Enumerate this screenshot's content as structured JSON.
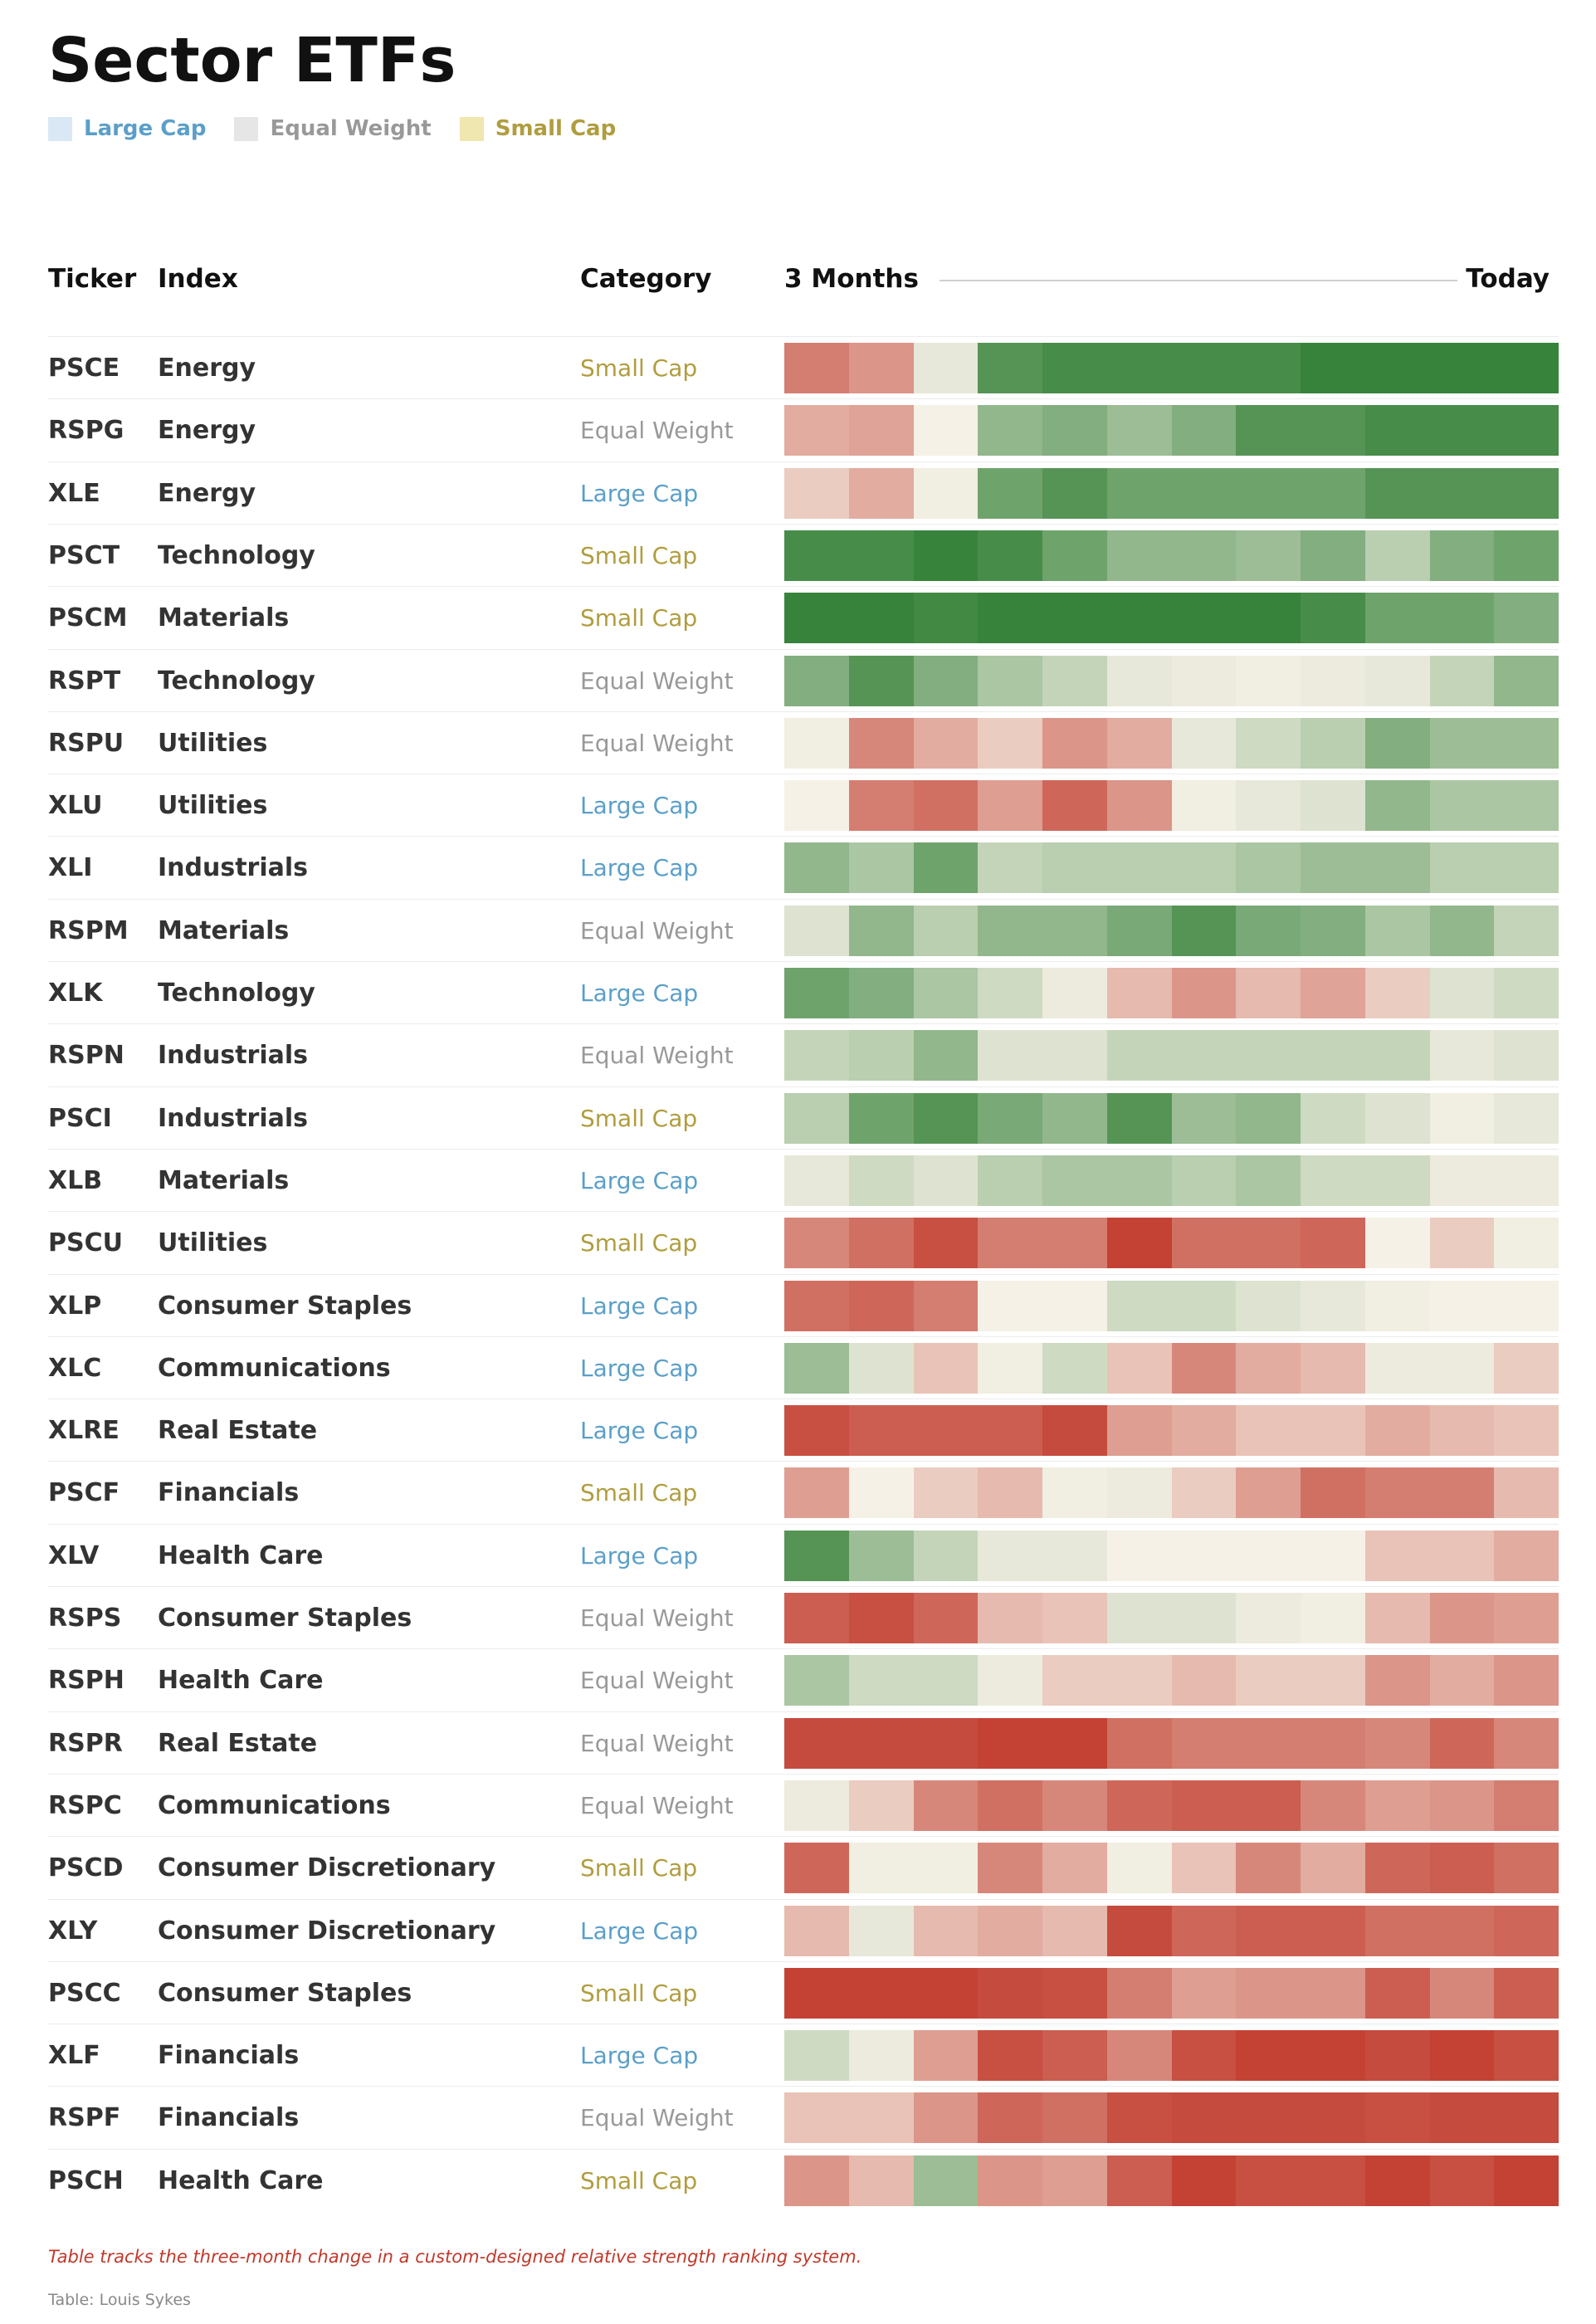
{
  "title": "Sector ETFs",
  "legend": [
    {
      "label": "Large Cap",
      "swatch": "#d9e8f4",
      "color": "#5b9fc9"
    },
    {
      "label": "Equal Weight",
      "swatch": "#e6e6e6",
      "color": "#999999"
    },
    {
      "label": "Small Cap",
      "swatch": "#f0e6b0",
      "color": "#b09d3e"
    }
  ],
  "headers": {
    "ticker": "Ticker",
    "index": "Index",
    "category": "Category",
    "start": "3 Months",
    "end": "Today"
  },
  "footer": {
    "note": "Table tracks the three-month change in a custom-designed relative strength ranking system.",
    "source": "Table: Louis Sykes"
  },
  "chart_data": {
    "type": "heatmap",
    "title": "Sector ETFs",
    "x": [
      "3 Months",
      "",
      "",
      "",
      "",
      "",
      "",
      "",
      "",
      "",
      "",
      "Today"
    ],
    "scale": {
      "min": -4,
      "max": 4,
      "negative_color": "#c0392b",
      "neutral_color": "#f6f1e6",
      "positive_color": "#2e7d32"
    },
    "columns": [
      "Ticker",
      "Index",
      "Category"
    ],
    "rows": [
      {
        "ticker": "PSCE",
        "index": "Energy",
        "category": "Small Cap",
        "values": [
          -2.5,
          -2,
          0.3,
          3.2,
          3.5,
          3.5,
          3.5,
          3.5,
          3.8,
          3.8,
          3.8,
          3.8
        ]
      },
      {
        "ticker": "RSPG",
        "index": "Energy",
        "category": "Equal Weight",
        "values": [
          -1.5,
          -1.7,
          0,
          2,
          2.3,
          1.8,
          2.3,
          3.2,
          3.2,
          3.5,
          3.5,
          3.5
        ]
      },
      {
        "ticker": "XLE",
        "index": "Energy",
        "category": "Large Cap",
        "values": [
          -0.8,
          -1.5,
          0.1,
          2.7,
          3.2,
          2.7,
          2.7,
          2.7,
          2.7,
          3.2,
          3.2,
          3.2
        ]
      },
      {
        "ticker": "PSCT",
        "index": "Technology",
        "category": "Small Cap",
        "values": [
          3.5,
          3.5,
          3.8,
          3.5,
          2.7,
          2,
          2,
          1.8,
          2.3,
          1.2,
          2.3,
          2.7
        ]
      },
      {
        "ticker": "PSCM",
        "index": "Materials",
        "category": "Small Cap",
        "values": [
          3.8,
          3.8,
          3.6,
          3.8,
          3.8,
          3.8,
          3.8,
          3.8,
          3.5,
          2.7,
          2.7,
          2.3
        ]
      },
      {
        "ticker": "RSPT",
        "index": "Technology",
        "category": "Equal Weight",
        "values": [
          2.3,
          3.2,
          2.3,
          1.5,
          1,
          0.3,
          0.2,
          0.1,
          0.2,
          0.3,
          1,
          2
        ]
      },
      {
        "ticker": "RSPU",
        "index": "Utilities",
        "category": "Equal Weight",
        "values": [
          0.1,
          -2.3,
          -1.5,
          -0.8,
          -2,
          -1.5,
          0.3,
          0.8,
          1.2,
          2.3,
          1.8,
          1.8
        ]
      },
      {
        "ticker": "XLU",
        "index": "Utilities",
        "category": "Large Cap",
        "values": [
          0,
          -2.5,
          -2.8,
          -1.8,
          -3,
          -2,
          0.1,
          0.3,
          0.5,
          2,
          1.5,
          1.5
        ]
      },
      {
        "ticker": "XLI",
        "index": "Industrials",
        "category": "Large Cap",
        "values": [
          2,
          1.5,
          2.7,
          1,
          1.2,
          1.2,
          1.2,
          1.5,
          1.8,
          1.8,
          1.2,
          1.2
        ]
      },
      {
        "ticker": "RSPM",
        "index": "Materials",
        "category": "Equal Weight",
        "values": [
          0.5,
          2,
          1.2,
          2,
          2,
          2.5,
          3.2,
          2.5,
          2.3,
          1.5,
          2,
          1
        ]
      },
      {
        "ticker": "XLK",
        "index": "Technology",
        "category": "Large Cap",
        "values": [
          2.7,
          2.3,
          1.5,
          0.8,
          0.2,
          -1.2,
          -2,
          -1.2,
          -1.7,
          -0.8,
          0.5,
          0.8
        ]
      },
      {
        "ticker": "RSPN",
        "index": "Industrials",
        "category": "Equal Weight",
        "values": [
          1,
          1.2,
          2,
          0.5,
          0.5,
          1,
          1,
          1,
          1,
          1,
          0.3,
          0.5
        ]
      },
      {
        "ticker": "PSCI",
        "index": "Industrials",
        "category": "Small Cap",
        "values": [
          1.2,
          2.7,
          3.2,
          2.5,
          2,
          3.2,
          1.8,
          2,
          0.8,
          0.5,
          0.1,
          0.3
        ]
      },
      {
        "ticker": "XLB",
        "index": "Materials",
        "category": "Large Cap",
        "values": [
          0.3,
          0.8,
          0.5,
          1.2,
          1.5,
          1.5,
          1.2,
          1.5,
          0.8,
          0.8,
          0.2,
          0.2
        ]
      },
      {
        "ticker": "PSCU",
        "index": "Utilities",
        "category": "Small Cap",
        "values": [
          -2.3,
          -2.8,
          -3.5,
          -2.5,
          -2.5,
          -3.8,
          -2.8,
          -2.8,
          -3,
          0,
          -0.8,
          0.1
        ]
      },
      {
        "ticker": "XLP",
        "index": "Consumer Staples",
        "category": "Large Cap",
        "values": [
          -2.8,
          -3,
          -2.5,
          0,
          0,
          0.8,
          0.8,
          0.5,
          0.3,
          0.1,
          0,
          0
        ]
      },
      {
        "ticker": "XLC",
        "index": "Communications",
        "category": "Large Cap",
        "values": [
          1.8,
          0.5,
          -1,
          0.1,
          0.8,
          -1,
          -2.3,
          -1.5,
          -1.2,
          0.2,
          0.2,
          -0.8
        ]
      },
      {
        "ticker": "XLRE",
        "index": "Real Estate",
        "category": "Large Cap",
        "values": [
          -3.5,
          -3.2,
          -3.2,
          -3.2,
          -3.6,
          -1.8,
          -1.5,
          -1,
          -1,
          -1.5,
          -1.2,
          -1
        ]
      },
      {
        "ticker": "PSCF",
        "index": "Financials",
        "category": "Small Cap",
        "values": [
          -1.8,
          0,
          -0.8,
          -1.2,
          0.1,
          0.2,
          -0.8,
          -1.8,
          -2.8,
          -2.5,
          -2.5,
          -1.2
        ]
      },
      {
        "ticker": "XLV",
        "index": "Health Care",
        "category": "Large Cap",
        "values": [
          3.2,
          1.8,
          1,
          0.3,
          0.3,
          0,
          0,
          0,
          0,
          -1,
          -1,
          -1.5
        ]
      },
      {
        "ticker": "RSPS",
        "index": "Consumer Staples",
        "category": "Equal Weight",
        "values": [
          -3.2,
          -3.5,
          -3,
          -1.2,
          -1,
          0.5,
          0.5,
          0.2,
          0.1,
          -1.2,
          -2,
          -1.8
        ]
      },
      {
        "ticker": "RSPH",
        "index": "Health Care",
        "category": "Equal Weight",
        "values": [
          1.5,
          0.8,
          0.8,
          0.2,
          -0.8,
          -0.8,
          -1.2,
          -0.8,
          -0.8,
          -2,
          -1.5,
          -2
        ]
      },
      {
        "ticker": "RSPR",
        "index": "Real Estate",
        "category": "Equal Weight",
        "values": [
          -3.6,
          -3.6,
          -3.6,
          -3.8,
          -3.8,
          -2.8,
          -2.5,
          -2.5,
          -2.5,
          -2.3,
          -3,
          -2.3
        ]
      },
      {
        "ticker": "RSPC",
        "index": "Communications",
        "category": "Equal Weight",
        "values": [
          0.2,
          -0.8,
          -2.3,
          -2.8,
          -2.3,
          -3,
          -3.2,
          -3.2,
          -2.3,
          -1.8,
          -2,
          -2.5
        ]
      },
      {
        "ticker": "PSCD",
        "index": "Consumer Discretionary",
        "category": "Small Cap",
        "values": [
          -3,
          0.1,
          0.1,
          -2.3,
          -1.5,
          0.1,
          -1,
          -2.3,
          -1.5,
          -3,
          -3.2,
          -2.8
        ]
      },
      {
        "ticker": "XLY",
        "index": "Consumer Discretionary",
        "category": "Large Cap",
        "values": [
          -1.2,
          0.3,
          -1.2,
          -1.5,
          -1.2,
          -3.6,
          -3,
          -3.2,
          -3.2,
          -2.8,
          -2.8,
          -3
        ]
      },
      {
        "ticker": "PSCC",
        "index": "Consumer Staples",
        "category": "Small Cap",
        "values": [
          -3.8,
          -3.8,
          -3.8,
          -3.6,
          -3.5,
          -2.5,
          -1.8,
          -2,
          -2,
          -3.2,
          -2.3,
          -3.2
        ]
      },
      {
        "ticker": "XLF",
        "index": "Financials",
        "category": "Large Cap",
        "values": [
          0.8,
          0.2,
          -1.8,
          -3.5,
          -3.2,
          -2.3,
          -3.5,
          -3.8,
          -3.8,
          -3.6,
          -3.8,
          -3.5
        ]
      },
      {
        "ticker": "RSPF",
        "index": "Financials",
        "category": "Equal Weight",
        "values": [
          -1,
          -1,
          -2,
          -3,
          -2.8,
          -3.5,
          -3.6,
          -3.6,
          -3.6,
          -3.5,
          -3.6,
          -3.6
        ]
      },
      {
        "ticker": "PSCH",
        "index": "Health Care",
        "category": "Small Cap",
        "values": [
          -2,
          -1.2,
          1.8,
          -2,
          -1.8,
          -3.2,
          -3.8,
          -3.5,
          -3.5,
          -3.8,
          -3.5,
          -3.8
        ]
      }
    ]
  }
}
